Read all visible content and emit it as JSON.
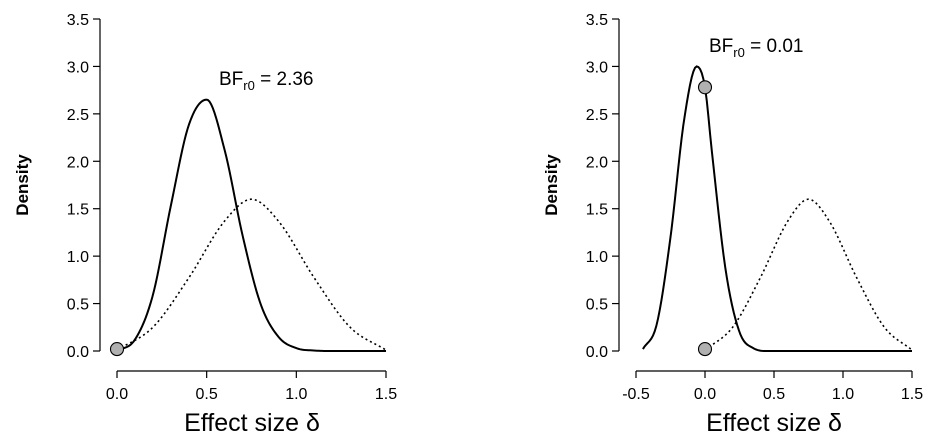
{
  "chart_data": [
    {
      "type": "line",
      "ylabel": "Density",
      "xlabel": "Effect size δ",
      "xlim": [
        0.0,
        1.5
      ],
      "ylim": [
        0.0,
        3.5
      ],
      "xticks": [
        "0.0",
        "0.5",
        "1.0",
        "1.5"
      ],
      "yticks": [
        "0.0",
        "0.5",
        "1.0",
        "1.5",
        "2.0",
        "2.5",
        "3.0",
        "3.5"
      ],
      "grid": false,
      "annotation": {
        "main": "BF",
        "sub": "r0",
        "rest": " = 2.36"
      },
      "series": [
        {
          "style": "solid",
          "color": "#000000",
          "x_from": 0.0,
          "x_to": 1.5,
          "points": [
            [
              0.0,
              0.0
            ],
            [
              0.1,
              0.12
            ],
            [
              0.2,
              0.59
            ],
            [
              0.3,
              1.53
            ],
            [
              0.4,
              2.38
            ],
            [
              0.5,
              2.65
            ],
            [
              0.6,
              2.12
            ],
            [
              0.7,
              1.22
            ],
            [
              0.8,
              0.5
            ],
            [
              0.9,
              0.15
            ],
            [
              1.0,
              0.03
            ],
            [
              1.1,
              0.005
            ],
            [
              1.2,
              0.0
            ],
            [
              1.5,
              0.0
            ]
          ]
        },
        {
          "style": "dotted",
          "color": "#000000",
          "x_from": 0.0,
          "x_to": 1.5,
          "points": [
            [
              0.0,
              0.01
            ],
            [
              0.2,
              0.25
            ],
            [
              0.4,
              0.77
            ],
            [
              0.6,
              1.37
            ],
            [
              0.75,
              1.6
            ],
            [
              0.9,
              1.37
            ],
            [
              1.1,
              0.77
            ],
            [
              1.3,
              0.25
            ],
            [
              1.5,
              0.01
            ]
          ]
        }
      ],
      "points": [
        {
          "x": 0.0,
          "y": 0.02,
          "color": "#b0b0b0"
        }
      ]
    },
    {
      "type": "line",
      "ylabel": "Density",
      "xlabel": "Effect size δ",
      "xlim": [
        -0.5,
        1.5
      ],
      "ylim": [
        0.0,
        3.5
      ],
      "xticks": [
        "-0.5",
        "0.0",
        "0.5",
        "1.0",
        "1.5"
      ],
      "yticks": [
        "0.0",
        "0.5",
        "1.0",
        "1.5",
        "2.0",
        "2.5",
        "3.0",
        "3.5"
      ],
      "grid": false,
      "annotation": {
        "main": "BF",
        "sub": "r0",
        "rest": " = 0.01"
      },
      "series": [
        {
          "style": "solid",
          "color": "#000000",
          "x_from": -0.45,
          "x_to": 1.5,
          "points": [
            [
              -0.45,
              0.02
            ],
            [
              -0.35,
              0.28
            ],
            [
              -0.25,
              1.2
            ],
            [
              -0.15,
              2.45
            ],
            [
              -0.06,
              3.0
            ],
            [
              0.0,
              2.78
            ],
            [
              0.05,
              2.1
            ],
            [
              0.15,
              0.85
            ],
            [
              0.25,
              0.2
            ],
            [
              0.35,
              0.03
            ],
            [
              0.45,
              0.0
            ],
            [
              1.5,
              0.0
            ]
          ]
        },
        {
          "style": "dotted",
          "color": "#000000",
          "x_from": 0.0,
          "x_to": 1.5,
          "points": [
            [
              0.0,
              0.01
            ],
            [
              0.2,
              0.25
            ],
            [
              0.4,
              0.77
            ],
            [
              0.6,
              1.37
            ],
            [
              0.75,
              1.6
            ],
            [
              0.9,
              1.37
            ],
            [
              1.1,
              0.77
            ],
            [
              1.3,
              0.25
            ],
            [
              1.5,
              0.01
            ]
          ]
        }
      ],
      "points": [
        {
          "x": 0.0,
          "y": 2.78,
          "color": "#b0b0b0"
        },
        {
          "x": 0.0,
          "y": 0.02,
          "color": "#b0b0b0"
        }
      ]
    }
  ]
}
